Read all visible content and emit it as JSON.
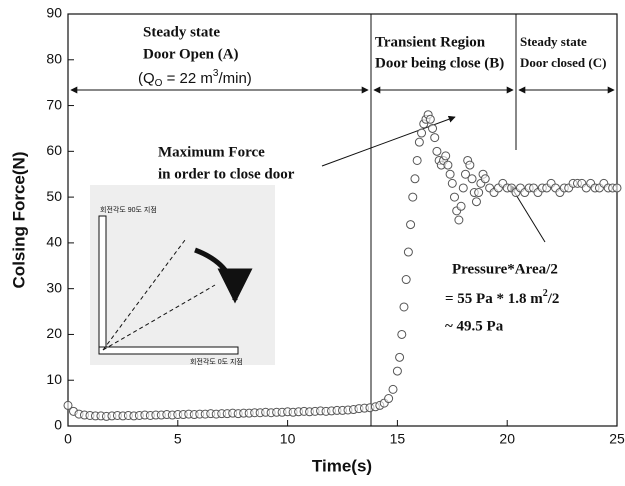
{
  "chart_data": {
    "type": "scatter",
    "x_label": "Time(s)",
    "y_label": "Colsing Force(N)",
    "color": "#555555",
    "xlim": [
      0,
      25
    ],
    "xticks": [
      0,
      5,
      10,
      15,
      20,
      25
    ],
    "ylim": [
      0,
      90
    ],
    "yticks": [
      0,
      10,
      20,
      30,
      40,
      50,
      60,
      70,
      80,
      90
    ],
    "x": [
      0,
      0.25,
      0.5,
      0.75,
      1,
      1.25,
      1.5,
      1.75,
      2,
      2.25,
      2.5,
      2.75,
      3,
      3.25,
      3.5,
      3.75,
      4,
      4.25,
      4.5,
      4.75,
      5,
      5.25,
      5.5,
      5.75,
      6,
      6.25,
      6.5,
      6.75,
      7,
      7.25,
      7.5,
      7.75,
      8,
      8.25,
      8.5,
      8.75,
      9,
      9.25,
      9.5,
      9.75,
      10,
      10.25,
      10.5,
      10.75,
      11,
      11.25,
      11.5,
      11.75,
      12,
      12.25,
      12.5,
      12.75,
      13,
      13.25,
      13.5,
      13.75,
      14,
      14.2,
      14.4,
      14.6,
      14.8,
      15,
      15.1,
      15.2,
      15.3,
      15.4,
      15.5,
      15.6,
      15.7,
      15.8,
      15.9,
      16,
      16.1,
      16.2,
      16.3,
      16.4,
      16.5,
      16.6,
      16.7,
      16.8,
      16.9,
      17,
      17.1,
      17.2,
      17.3,
      17.4,
      17.5,
      17.6,
      17.7,
      17.8,
      17.9,
      18,
      18.1,
      18.2,
      18.3,
      18.4,
      18.5,
      18.6,
      18.7,
      18.8,
      18.9,
      19,
      19.2,
      19.4,
      19.6,
      19.8,
      20,
      20.2,
      20.4,
      20.6,
      20.8,
      21,
      21.2,
      21.4,
      21.6,
      21.8,
      22,
      22.2,
      22.4,
      22.6,
      22.8,
      23,
      23.2,
      23.4,
      23.6,
      23.8,
      24,
      24.2,
      24.4,
      24.6,
      24.8,
      25
    ],
    "values": [
      4.5,
      3.2,
      2.6,
      2.4,
      2.3,
      2.2,
      2.2,
      2.1,
      2.2,
      2.3,
      2.2,
      2.3,
      2.2,
      2.3,
      2.4,
      2.3,
      2.4,
      2.4,
      2.5,
      2.4,
      2.5,
      2.5,
      2.6,
      2.5,
      2.6,
      2.6,
      2.7,
      2.6,
      2.7,
      2.7,
      2.8,
      2.7,
      2.8,
      2.8,
      2.9,
      2.9,
      3.0,
      2.9,
      3.0,
      3.0,
      3.1,
      3.0,
      3.1,
      3.2,
      3.1,
      3.2,
      3.3,
      3.2,
      3.3,
      3.4,
      3.4,
      3.5,
      3.6,
      3.8,
      3.9,
      4.0,
      4.2,
      4.5,
      5,
      6,
      8,
      12,
      15,
      20,
      26,
      32,
      38,
      44,
      50,
      54,
      58,
      62,
      64,
      66,
      67,
      68,
      67,
      65,
      63,
      60,
      58,
      57,
      58,
      59,
      57,
      55,
      53,
      50,
      47,
      45,
      48,
      52,
      55,
      58,
      57,
      54,
      51,
      49,
      51,
      53,
      55,
      54,
      52,
      51,
      52,
      53,
      52,
      52,
      51,
      52,
      51,
      52,
      52,
      51,
      52,
      52,
      53,
      52,
      51,
      52,
      52,
      53,
      53,
      53,
      52,
      53,
      52,
      52,
      53,
      52,
      52,
      52
    ],
    "annotations": {
      "region_a": [
        "Steady state",
        "Door Open (A)"
      ],
      "flow_rate": [
        "(Q",
        "O",
        " = 22 m",
        "3",
        "/min)"
      ],
      "region_b": [
        "Transient Region",
        "Door being close (B)"
      ],
      "region_c": [
        "Steady state",
        "Door closed (C)"
      ],
      "max_force": [
        "Maximum Force",
        "in order to close door"
      ],
      "pressure": [
        "Pressure*Area/2",
        "= 55 Pa * 1.8 m",
        "2",
        "/2",
        "~ 49.5 Pa"
      ],
      "inset": [
        "회전각도 90도 지점",
        "회전각도 0도 지점"
      ]
    }
  }
}
